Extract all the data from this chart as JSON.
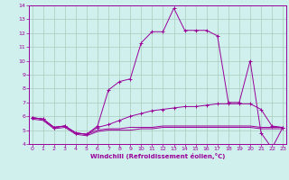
{
  "xlabel": "Windchill (Refroidissement éolien,°C)",
  "x": [
    0,
    1,
    2,
    3,
    4,
    5,
    6,
    7,
    8,
    9,
    10,
    11,
    12,
    13,
    14,
    15,
    16,
    17,
    18,
    19,
    20,
    21,
    22,
    23
  ],
  "line_peak": [
    5.9,
    5.8,
    5.2,
    5.3,
    4.8,
    4.7,
    5.3,
    7.9,
    8.5,
    8.7,
    11.3,
    12.1,
    12.1,
    13.8,
    12.2,
    12.2,
    12.2,
    11.8,
    7.0,
    7.0,
    10.0,
    4.8,
    3.7,
    5.2
  ],
  "line_rise": [
    5.9,
    5.8,
    5.2,
    5.3,
    4.8,
    4.7,
    5.2,
    5.4,
    5.7,
    6.0,
    6.2,
    6.4,
    6.5,
    6.6,
    6.7,
    6.7,
    6.8,
    6.9,
    6.9,
    6.9,
    6.9,
    6.5,
    5.3,
    5.2
  ],
  "line_flat1": [
    5.9,
    5.8,
    5.2,
    5.3,
    4.8,
    4.7,
    5.0,
    5.1,
    5.1,
    5.2,
    5.2,
    5.2,
    5.3,
    5.3,
    5.3,
    5.3,
    5.3,
    5.3,
    5.3,
    5.3,
    5.3,
    5.2,
    5.2,
    5.2
  ],
  "line_flat2": [
    5.8,
    5.7,
    5.1,
    5.2,
    4.7,
    4.6,
    4.9,
    5.0,
    5.0,
    5.0,
    5.1,
    5.1,
    5.2,
    5.2,
    5.2,
    5.2,
    5.2,
    5.2,
    5.2,
    5.2,
    5.2,
    5.1,
    5.1,
    5.1
  ],
  "color": "#990099",
  "bg_color": "#d0f0ee",
  "grid_color": "#aaccbb",
  "ylim": [
    4,
    14
  ],
  "yticks": [
    4,
    5,
    6,
    7,
    8,
    9,
    10,
    11,
    12,
    13,
    14
  ],
  "xticks": [
    0,
    1,
    2,
    3,
    4,
    5,
    6,
    7,
    8,
    9,
    10,
    11,
    12,
    13,
    14,
    15,
    16,
    17,
    18,
    19,
    20,
    21,
    22,
    23
  ]
}
